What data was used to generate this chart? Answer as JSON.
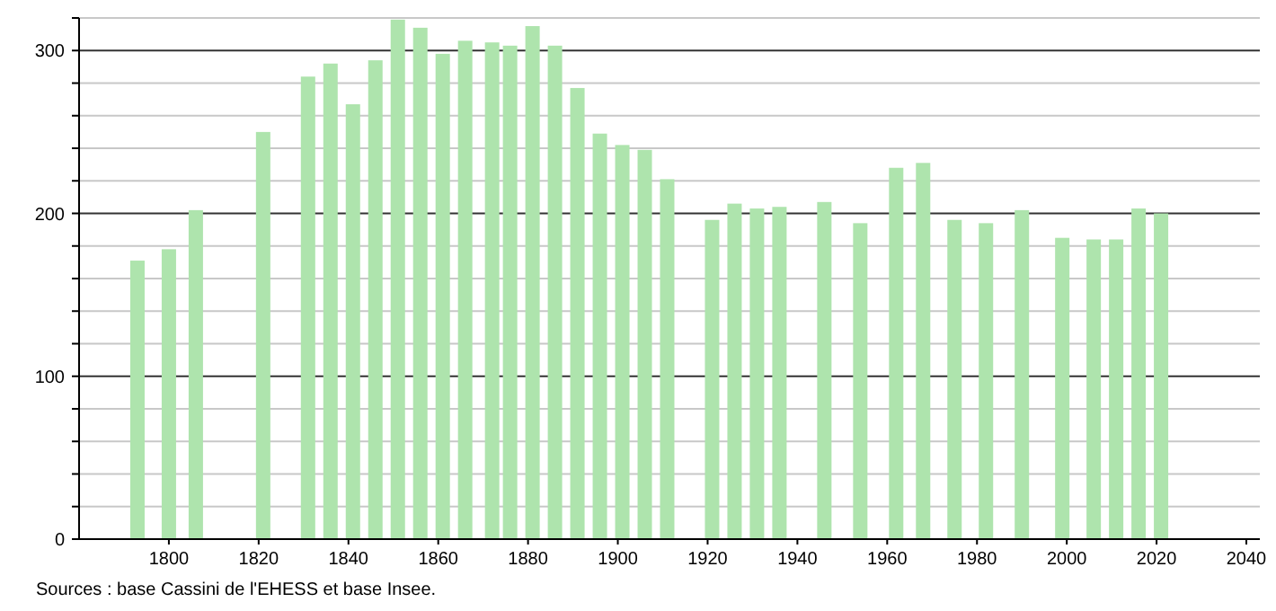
{
  "chart_data": {
    "type": "bar",
    "x": [
      1793,
      1800,
      1806,
      1821,
      1831,
      1836,
      1841,
      1846,
      1851,
      1856,
      1861,
      1866,
      1872,
      1876,
      1881,
      1886,
      1891,
      1896,
      1901,
      1906,
      1911,
      1921,
      1926,
      1931,
      1936,
      1946,
      1954,
      1962,
      1968,
      1975,
      1982,
      1990,
      1999,
      2006,
      2011,
      2016,
      2021
    ],
    "values": [
      171,
      178,
      202,
      250,
      284,
      292,
      267,
      294,
      319,
      314,
      298,
      306,
      305,
      303,
      315,
      303,
      277,
      249,
      242,
      239,
      221,
      196,
      206,
      203,
      204,
      207,
      194,
      228,
      231,
      196,
      194,
      202,
      185,
      184,
      184,
      203,
      200
    ],
    "color": "#aee4ad",
    "xlim": [
      1780,
      2043
    ],
    "xticks": [
      1800,
      1820,
      1840,
      1860,
      1880,
      1900,
      1920,
      1940,
      1960,
      1980,
      2000,
      2020,
      2040
    ],
    "ylim": [
      0,
      320
    ],
    "yticks": [
      0,
      {
        "value": 20,
        "label": null
      },
      {
        "value": 40,
        "label": null
      },
      {
        "value": 60,
        "label": null
      },
      {
        "value": 80,
        "label": null
      },
      100,
      {
        "value": 120,
        "label": null
      },
      {
        "value": 140,
        "label": null
      },
      {
        "value": 160,
        "label": null
      },
      {
        "value": 180,
        "label": null
      },
      200,
      {
        "value": 220,
        "label": null
      },
      {
        "value": 240,
        "label": null
      },
      {
        "value": 260,
        "label": null
      },
      {
        "value": 280,
        "label": null
      },
      300,
      {
        "value": 320,
        "label": null
      }
    ],
    "grid": "y",
    "annotations": [
      "Sources : base Cassini de l'EHESS et base Insee."
    ]
  }
}
